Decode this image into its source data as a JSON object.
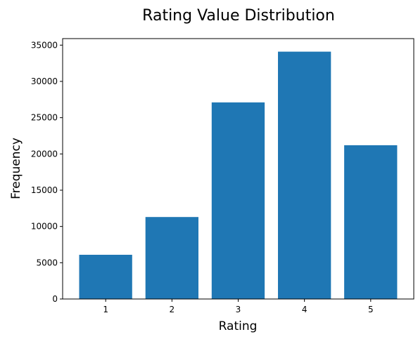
{
  "chart_data": {
    "type": "bar",
    "title": "Rating Value Distribution",
    "xlabel": "Rating",
    "ylabel": "Frequency",
    "categories": [
      "1",
      "2",
      "3",
      "4",
      "5"
    ],
    "values": [
      6100,
      11300,
      27100,
      34100,
      21200
    ],
    "ylim": [
      0,
      35900
    ],
    "yticks": [
      0,
      5000,
      10000,
      15000,
      20000,
      25000,
      30000,
      35000
    ],
    "ytick_labels": [
      "0",
      "5000",
      "10000",
      "15000",
      "20000",
      "25000",
      "30000",
      "35000"
    ],
    "grid": false,
    "legend": "none",
    "bar_color": "#1f77b4"
  }
}
